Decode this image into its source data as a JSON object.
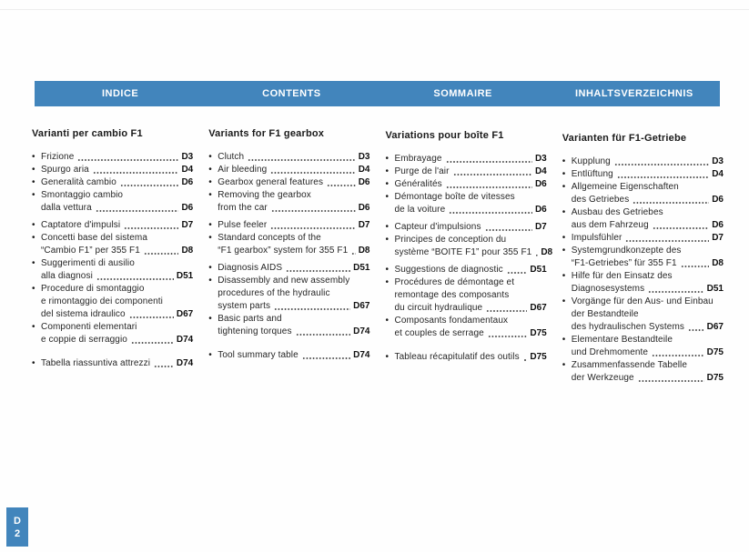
{
  "header": {
    "bar_color": "#4285bc",
    "labels": [
      "INDICE",
      "CONTENTS",
      "SOMMAIRE",
      "INHALTSVERZEICHNIS"
    ]
  },
  "page_tab": {
    "section": "D",
    "page": "2"
  },
  "columns": [
    {
      "heading": "Varianti per cambio F1",
      "items": [
        {
          "lines": [
            "Frizione"
          ],
          "ref": "D3"
        },
        {
          "lines": [
            "Spurgo aria"
          ],
          "ref": "D4"
        },
        {
          "lines": [
            "Generalità cambio"
          ],
          "ref": "D6"
        },
        {
          "lines": [
            "Smontaggio cambio",
            "dalla vettura"
          ],
          "ref": "D6"
        },
        {
          "lines": [
            "Captatore d'impulsi"
          ],
          "ref": "D7",
          "gap": "small"
        },
        {
          "lines": [
            "Concetti base del sistema",
            "“Cambio F1” per 355 F1"
          ],
          "ref": "D8"
        },
        {
          "lines": [
            "Suggerimenti di ausilio",
            "alla diagnosi"
          ],
          "ref": "D51"
        },
        {
          "lines": [
            "Procedure di smontaggio",
            "e rimontaggio dei componenti",
            "del sistema idraulico"
          ],
          "ref": "D67"
        },
        {
          "lines": [
            "Componenti elementari",
            "e coppie di serraggio"
          ],
          "ref": "D74"
        },
        {
          "lines": [
            "Tabella riassuntiva attrezzi"
          ],
          "ref": "D74",
          "gap": "large"
        }
      ]
    },
    {
      "heading": "Variants for F1 gearbox",
      "items": [
        {
          "lines": [
            "Clutch"
          ],
          "ref": "D3"
        },
        {
          "lines": [
            "Air bleeding"
          ],
          "ref": "D4"
        },
        {
          "lines": [
            "Gearbox general features"
          ],
          "ref": "D6"
        },
        {
          "lines": [
            "Removing the gearbox",
            "from the car"
          ],
          "ref": "D6"
        },
        {
          "lines": [
            "Pulse feeler"
          ],
          "ref": "D7",
          "gap": "small"
        },
        {
          "lines": [
            "Standard concepts of the",
            "“F1 gearbox” system for 355 F1"
          ],
          "ref": "D8"
        },
        {
          "lines": [
            "Diagnosis AIDS"
          ],
          "ref": "D51",
          "gap": "small"
        },
        {
          "lines": [
            "Disassembly and new assembly",
            "procedures of the hydraulic",
            "system parts"
          ],
          "ref": "D67"
        },
        {
          "lines": [
            "Basic parts and",
            "tightening torques"
          ],
          "ref": "D74"
        },
        {
          "lines": [
            "Tool summary table"
          ],
          "ref": "D74",
          "gap": "large"
        }
      ]
    },
    {
      "heading": "Variations pour boîte F1",
      "items": [
        {
          "lines": [
            "Embrayage"
          ],
          "ref": "D3"
        },
        {
          "lines": [
            "Purge de l'air"
          ],
          "ref": "D4"
        },
        {
          "lines": [
            "Généralités"
          ],
          "ref": "D6"
        },
        {
          "lines": [
            "Démontage boîte de vitesses",
            "de la voiture"
          ],
          "ref": "D6"
        },
        {
          "lines": [
            "Capteur d'impulsions"
          ],
          "ref": "D7",
          "gap": "small"
        },
        {
          "lines": [
            "Principes de conception du",
            "système “BOITE F1” pour 355 F1"
          ],
          "ref": "D8"
        },
        {
          "lines": [
            "Suggestions de diagnostic"
          ],
          "ref": "D51",
          "gap": "small"
        },
        {
          "lines": [
            "Procédures de démontage et",
            "remontage des composants",
            "du circuit hydraulique"
          ],
          "ref": "D67"
        },
        {
          "lines": [
            "Composants fondamentaux",
            "et couples de serrage"
          ],
          "ref": "D75"
        },
        {
          "lines": [
            "Tableau récapitulatif des outils"
          ],
          "ref": "D75",
          "gap": "large"
        }
      ]
    },
    {
      "heading": "Varianten für F1-Getriebe",
      "items": [
        {
          "lines": [
            "Kupplung"
          ],
          "ref": "D3"
        },
        {
          "lines": [
            "Entlüftung"
          ],
          "ref": "D4"
        },
        {
          "lines": [
            "Allgemeine Eigenschaften",
            "des Getriebes"
          ],
          "ref": "D6"
        },
        {
          "lines": [
            "Ausbau des Getriebes",
            "aus dem Fahrzeug"
          ],
          "ref": "D6"
        },
        {
          "lines": [
            "Impulsfühler"
          ],
          "ref": "D7"
        },
        {
          "lines": [
            "Systemgrundkonzepte des",
            "“F1-Getriebes” für 355 F1"
          ],
          "ref": "D8"
        },
        {
          "lines": [
            "Hilfe für den Einsatz des",
            "Diagnosesystems"
          ],
          "ref": "D51"
        },
        {
          "lines": [
            "Vorgänge für den Aus- und Einbau",
            "der Bestandteile",
            "des hydraulischen Systems"
          ],
          "ref": "D67"
        },
        {
          "lines": [
            "Elementare Bestandteile",
            "und Drehmomente"
          ],
          "ref": "D75"
        },
        {
          "lines": [
            "Zusammenfassende Tabelle",
            "der Werkzeuge"
          ],
          "ref": "D75"
        }
      ]
    }
  ]
}
